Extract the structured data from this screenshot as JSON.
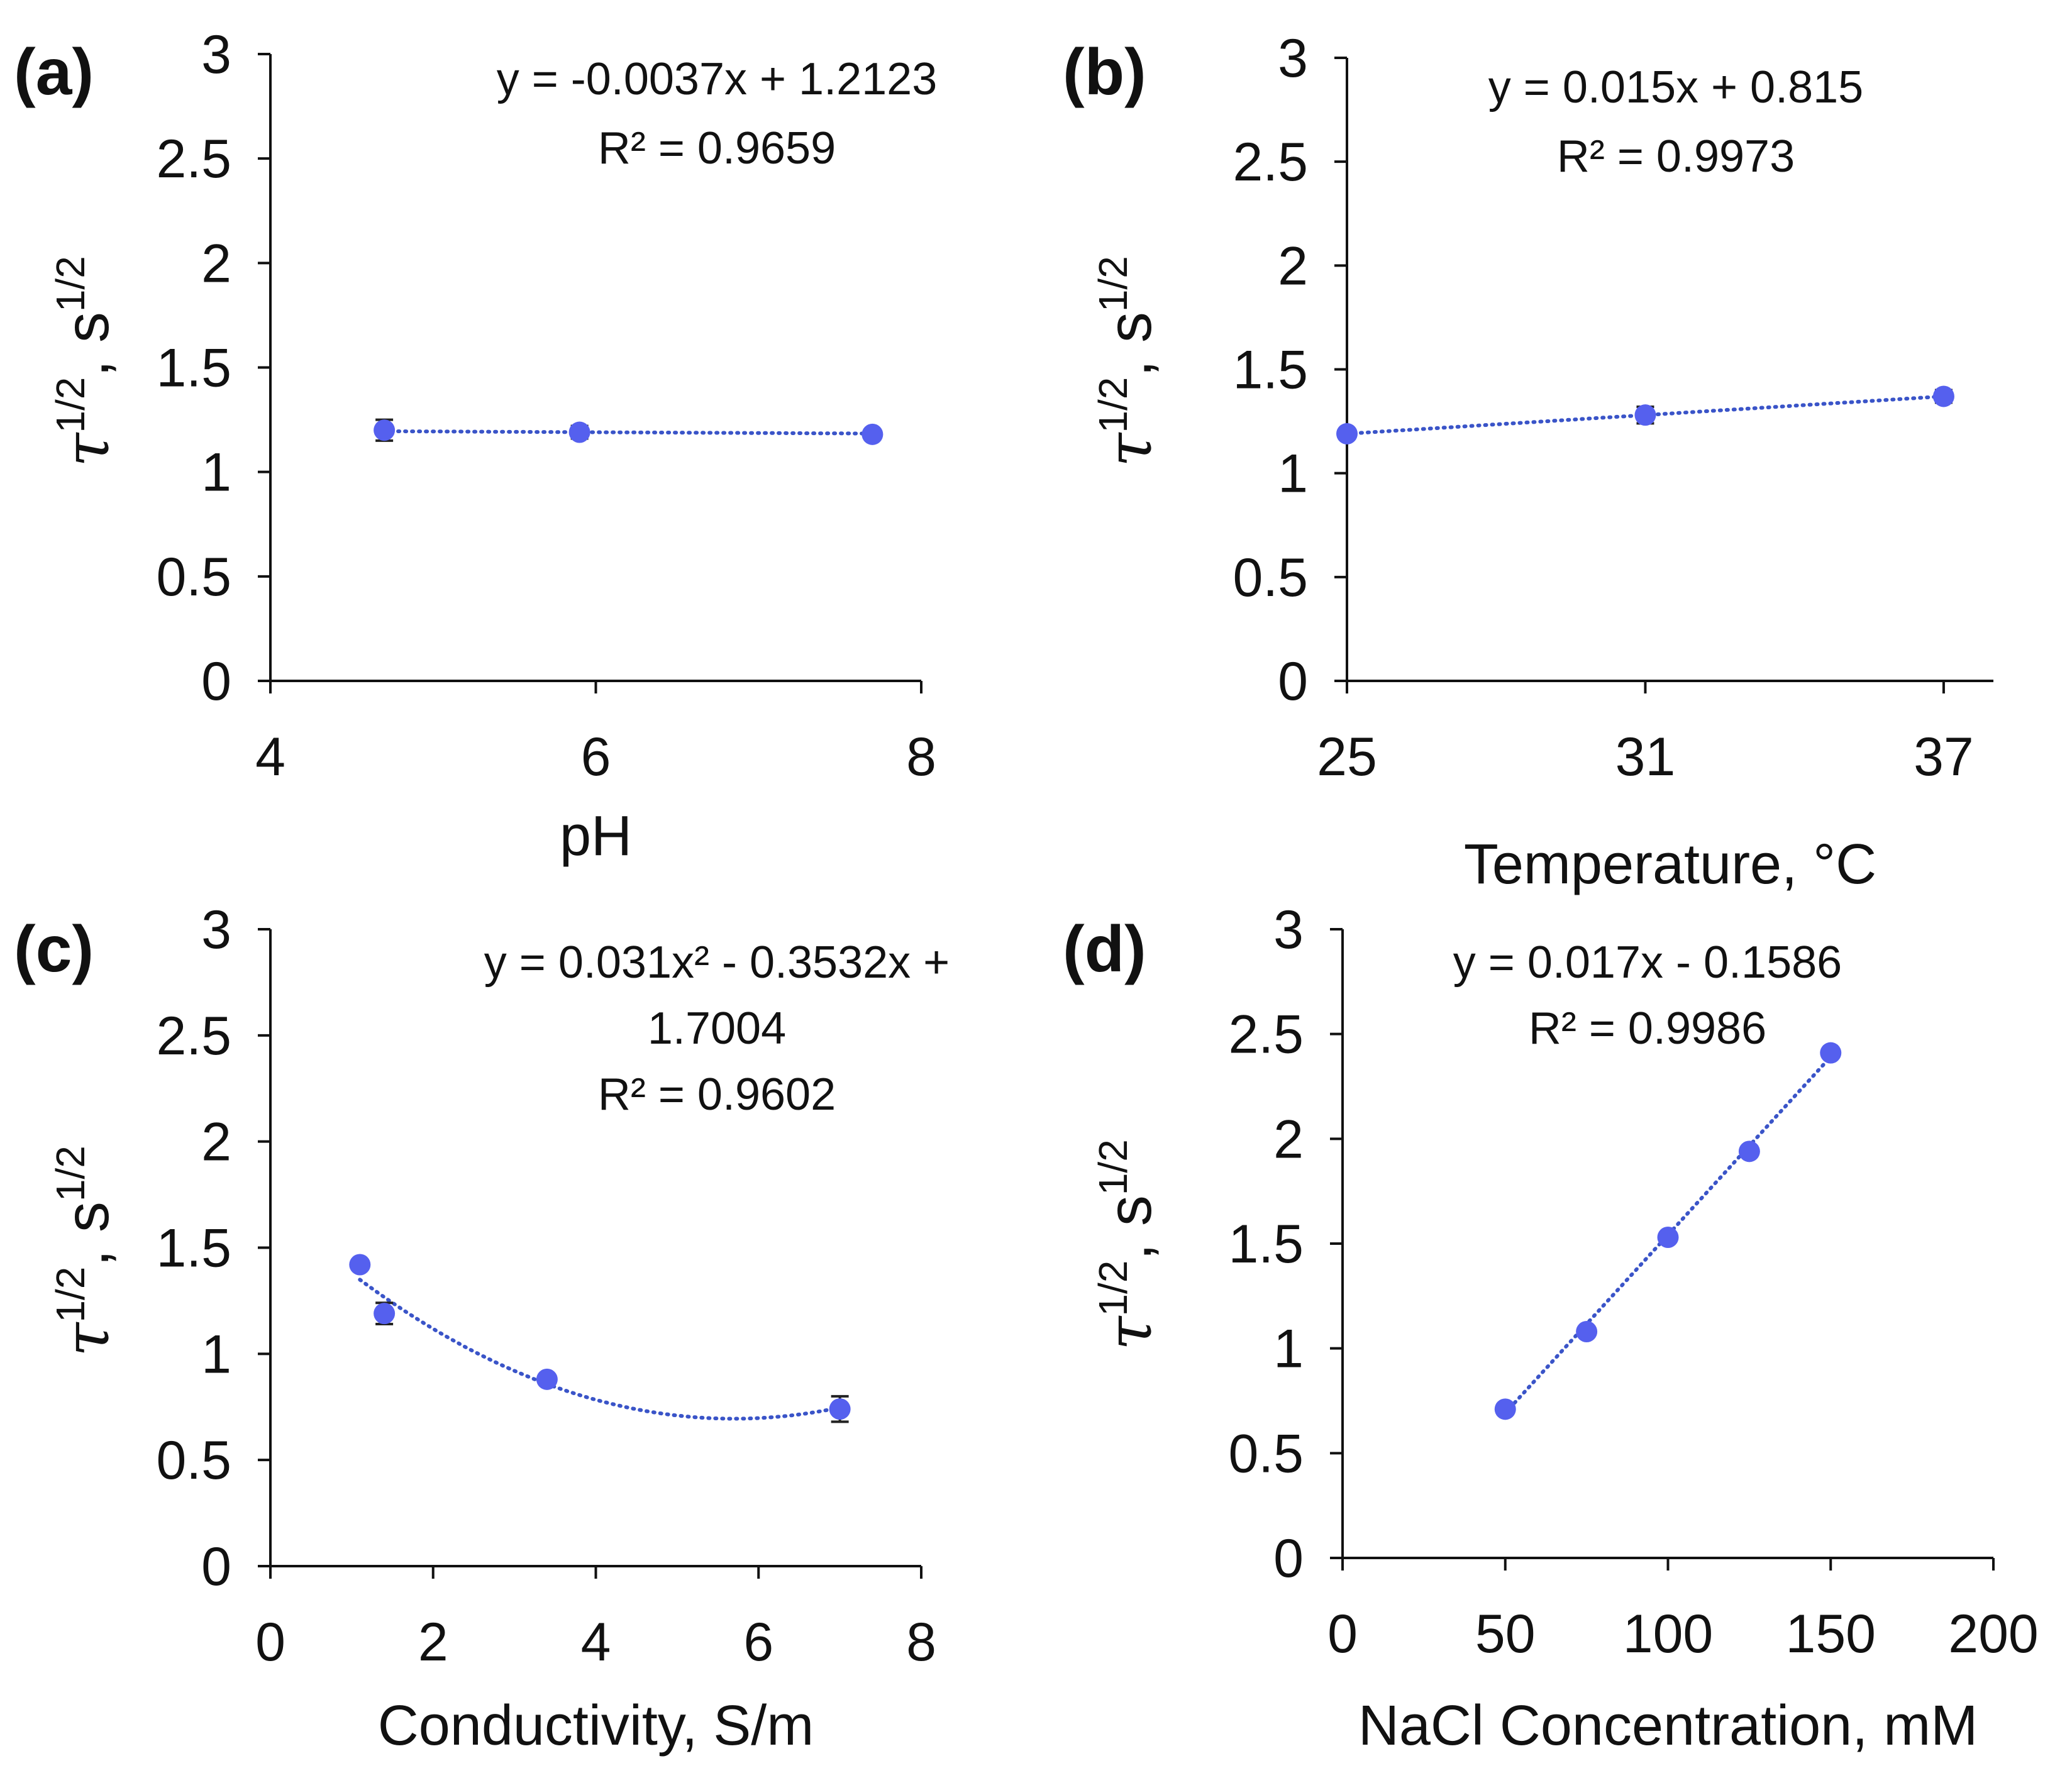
{
  "colors": {
    "marker": "#5560ee",
    "trend": "#3a54c8",
    "axis": "#111111",
    "error_bar": "#222222"
  },
  "chart_data": [
    {
      "id": "a",
      "panel_label": "(a)",
      "type": "scatter",
      "xlabel": "pH",
      "ylabel": {
        "symbol": "τ",
        "sup": "1/2",
        "unit": "s"
      },
      "xlim": [
        4,
        8
      ],
      "ylim": [
        0,
        3
      ],
      "xticks": [
        4,
        6,
        8
      ],
      "xtick_labels": [
        "4",
        "6",
        "8"
      ],
      "yticks": [
        0,
        0.5,
        1,
        1.5,
        2,
        2.5,
        3
      ],
      "ytick_labels": [
        "0",
        "0.5",
        "1",
        "1.5",
        "2",
        "2.5",
        "3"
      ],
      "x": [
        4.7,
        5.9,
        7.7
      ],
      "y": [
        1.2,
        1.19,
        1.18
      ],
      "error": [
        0.05,
        0.03,
        0.0
      ],
      "trendline": {
        "kind": "linear",
        "coef": [
          1.2123,
          -0.0037
        ],
        "x_from": 4.7,
        "x_to": 7.7
      },
      "equation": [
        "y = -0.0037x + 1.2123",
        "R² = 0.9659"
      ]
    },
    {
      "id": "b",
      "panel_label": "(b)",
      "type": "scatter",
      "xlabel": "Temperature, °C",
      "ylabel": {
        "symbol": "τ",
        "sup": "1/2",
        "unit": "s"
      },
      "xlim": [
        25,
        38
      ],
      "ylim": [
        0,
        3
      ],
      "xticks": [
        25,
        31,
        37
      ],
      "xtick_labels": [
        "25",
        "31",
        "37"
      ],
      "yticks": [
        0,
        0.5,
        1,
        1.5,
        2,
        2.5,
        3
      ],
      "ytick_labels": [
        "0",
        "0.5",
        "1",
        "1.5",
        "2",
        "2.5",
        "3"
      ],
      "x": [
        25,
        31,
        37
      ],
      "y": [
        1.19,
        1.28,
        1.37
      ],
      "error": [
        0.0,
        0.04,
        0.03
      ],
      "trendline": {
        "kind": "linear",
        "coef": [
          0.815,
          0.015
        ],
        "x_from": 25,
        "x_to": 37
      },
      "trendline_note": "drawn through the fitted values 1.19 → 1.37",
      "equation": [
        "y = 0.015x + 0.815",
        "R² = 0.9973"
      ]
    },
    {
      "id": "c",
      "panel_label": "(c)",
      "type": "scatter",
      "xlabel": "Conductivity, S/m",
      "ylabel": {
        "symbol": "τ",
        "sup": "1/2",
        "unit": "s"
      },
      "xlim": [
        0,
        8
      ],
      "ylim": [
        0,
        3
      ],
      "xticks": [
        0,
        2,
        4,
        6,
        8
      ],
      "xtick_labels": [
        "0",
        "2",
        "4",
        "6",
        "8"
      ],
      "yticks": [
        0,
        0.5,
        1,
        1.5,
        2,
        2.5,
        3
      ],
      "ytick_labels": [
        "0",
        "0.5",
        "1",
        "1.5",
        "2",
        "2.5",
        "3"
      ],
      "x": [
        1.1,
        1.4,
        3.4,
        7.0
      ],
      "y": [
        1.42,
        1.19,
        0.88,
        0.74
      ],
      "error": [
        0.02,
        0.05,
        0.02,
        0.06
      ],
      "trendline": {
        "kind": "poly2",
        "coef": [
          1.7004,
          -0.3532,
          0.031
        ],
        "x_from": 1.1,
        "x_to": 7.0
      },
      "equation": [
        "y = 0.031x² - 0.3532x +",
        "1.7004",
        "R² = 0.9602"
      ]
    },
    {
      "id": "d",
      "panel_label": "(d)",
      "type": "scatter",
      "xlabel": "NaCl Concentration, mM",
      "ylabel": {
        "symbol": "τ",
        "sup": "1/2",
        "unit": "s"
      },
      "xlim": [
        0,
        200
      ],
      "ylim": [
        0,
        3
      ],
      "xticks": [
        0,
        50,
        100,
        150,
        200
      ],
      "xtick_labels": [
        "0",
        "50",
        "100",
        "150",
        "200"
      ],
      "yticks": [
        0,
        0.5,
        1,
        1.5,
        2,
        2.5,
        3
      ],
      "ytick_labels": [
        "0",
        "0.5",
        "1",
        "1.5",
        "2",
        "2.5",
        "3"
      ],
      "x": [
        50,
        75,
        100,
        125,
        150
      ],
      "y": [
        0.71,
        1.08,
        1.53,
        1.94,
        2.41
      ],
      "error": [
        0,
        0,
        0,
        0,
        0
      ],
      "trendline": {
        "kind": "linear",
        "coef": [
          -0.1586,
          0.017
        ],
        "x_from": 50,
        "x_to": 150
      },
      "equation": [
        "y = 0.017x - 0.1586",
        "R² = 0.9986"
      ]
    }
  ]
}
